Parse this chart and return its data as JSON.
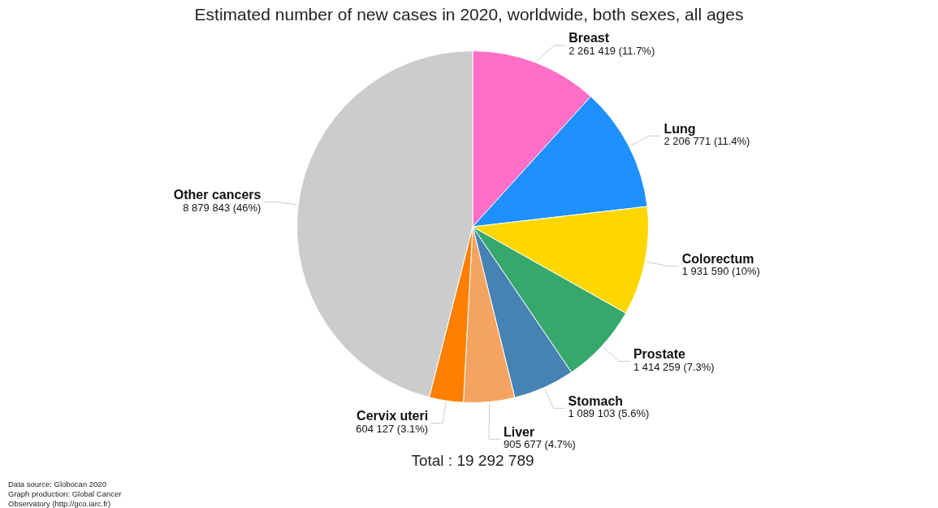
{
  "chart_data": {
    "type": "pie",
    "title": "Estimated number of new cases in 2020, worldwide, both sexes, all ages",
    "categories": [
      "Breast",
      "Lung",
      "Colorectum",
      "Prostate",
      "Stomach",
      "Liver",
      "Cervix uteri",
      "Other cancers"
    ],
    "values": [
      2261419,
      2206771,
      1931590,
      1414259,
      1089103,
      905677,
      604127,
      8879843
    ],
    "value_labels": [
      "2 261 419 (11.7%)",
      "2 206 771 (11.4%)",
      "1 931 590 (10%)",
      "1 414 259 (7.3%)",
      "1 089 103 (5.6%)",
      "905 677 (4.7%)",
      "604 127 (3.1%)",
      "8 879 843 (46%)"
    ],
    "colors": [
      "#ff6ec7",
      "#1e90ff",
      "#ffd700",
      "#36a86b",
      "#4682b4",
      "#f4a460",
      "#ff7f00",
      "#cccccc"
    ],
    "annotations": [
      "Total : 19 292 789",
      "Data source: Globocan 2020\nGraph production: Global Cancer Observatory (http://gco.iarc.fr)"
    ],
    "legend": false
  }
}
